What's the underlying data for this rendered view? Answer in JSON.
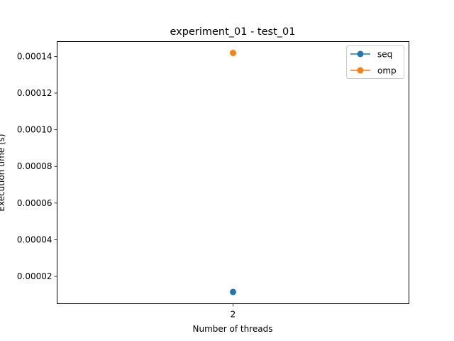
{
  "chart_data": {
    "type": "line",
    "title": "experiment_01 - test_01",
    "xlabel": "Number of threads",
    "ylabel": "Execution time (s)",
    "x": [
      2
    ],
    "x_tick_labels": [
      "2"
    ],
    "series": [
      {
        "name": "seq",
        "color": "#1f77b4",
        "marker": "circle",
        "values": [
          1.15e-05
        ]
      },
      {
        "name": "omp",
        "color": "#ff7f0e",
        "marker": "circle",
        "values": [
          0.0001419
        ]
      }
    ],
    "ylim": [
      5.1e-06,
      0.0001481
    ],
    "yticks": [
      2e-05,
      4e-05,
      6e-05,
      8e-05,
      0.0001,
      0.00012,
      0.00014
    ],
    "ytick_labels": [
      "0.00002",
      "0.00004",
      "0.00006",
      "0.00008",
      "0.00010",
      "0.00012",
      "0.00014"
    ],
    "grid": false,
    "legend_position": "top-right"
  }
}
